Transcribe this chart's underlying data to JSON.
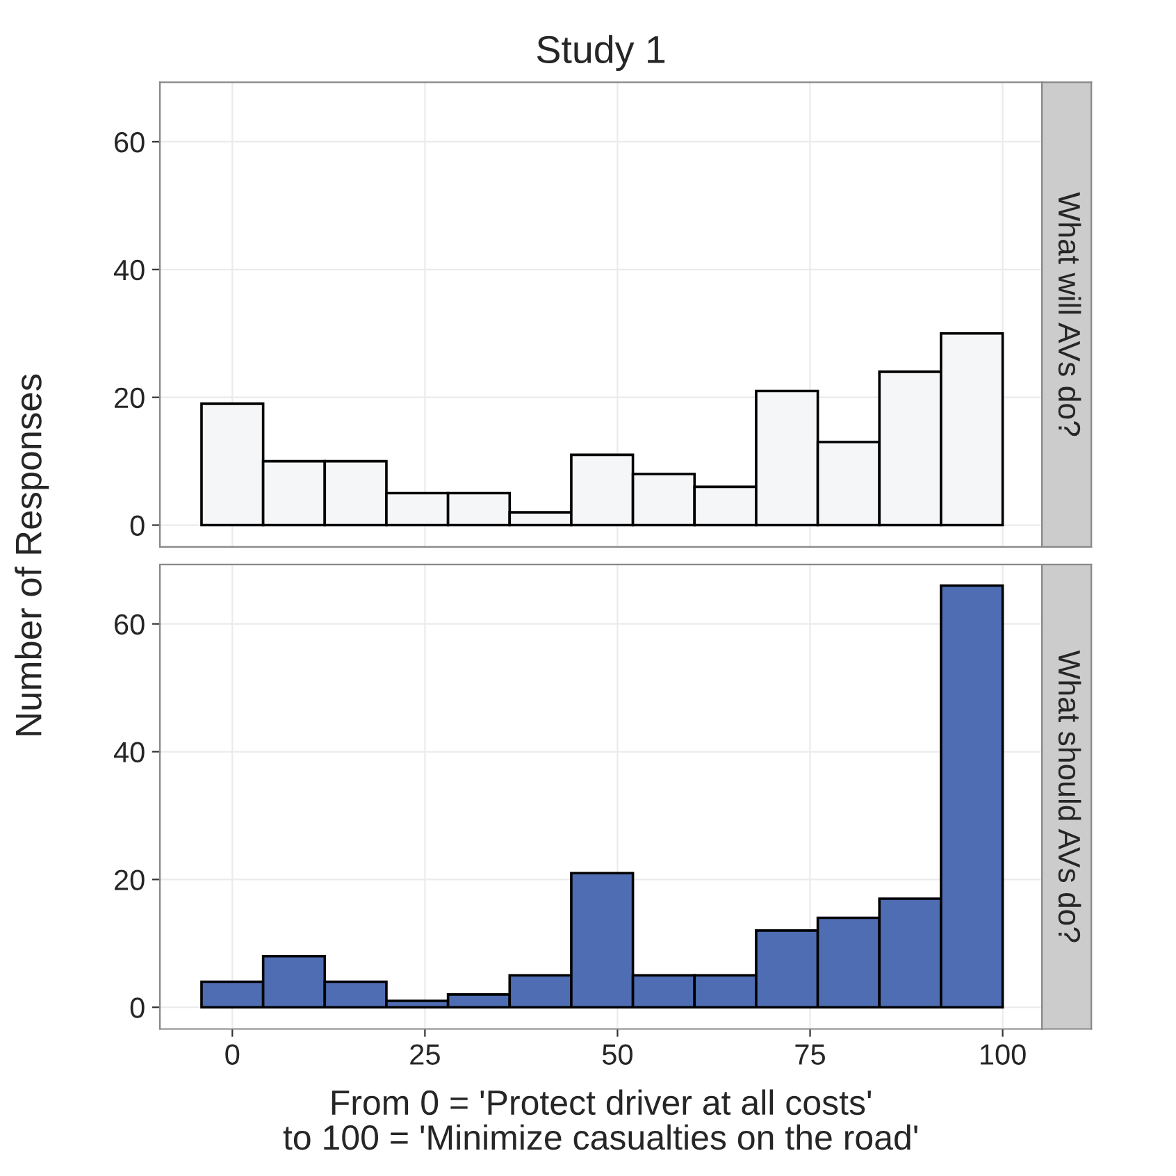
{
  "chart_data": [
    {
      "type": "histogram",
      "title": "Study 1",
      "ylabel": "Number of Responses",
      "annotations": [
        "What will AVs do?"
      ],
      "bins": [
        -4,
        4,
        12,
        20,
        28,
        36,
        44,
        52,
        60,
        68,
        76,
        84,
        92,
        100
      ],
      "values": [
        19,
        10,
        10,
        5,
        5,
        2,
        11,
        8,
        6,
        21,
        13,
        24,
        30
      ],
      "color": "#f5f6f8",
      "xlim": [
        -9.4,
        105.1
      ],
      "ylim": [
        -3.4,
        69.3
      ],
      "xticks": [
        0,
        25,
        50,
        75,
        100
      ],
      "yticks": [
        0,
        20,
        40,
        60
      ],
      "grid": true,
      "tick_labels": "y"
    },
    {
      "type": "histogram",
      "xlabel": "From 0 = 'Protect driver at all costs'\nto 100 = 'Minimize casualties on the road'",
      "annotations": [
        "What should AVs do?"
      ],
      "bins": [
        -4,
        4,
        12,
        20,
        28,
        36,
        44,
        52,
        60,
        68,
        76,
        84,
        92,
        100
      ],
      "values": [
        4,
        8,
        4,
        1,
        2,
        5,
        21,
        5,
        5,
        12,
        14,
        17,
        66
      ],
      "color": "#4f6db3",
      "xlim": [
        -9.4,
        105.1
      ],
      "ylim": [
        -3.4,
        69.3
      ],
      "xticks": [
        0,
        25,
        50,
        75,
        100
      ],
      "yticks": [
        0,
        20,
        40,
        60
      ],
      "grid": true
    }
  ]
}
